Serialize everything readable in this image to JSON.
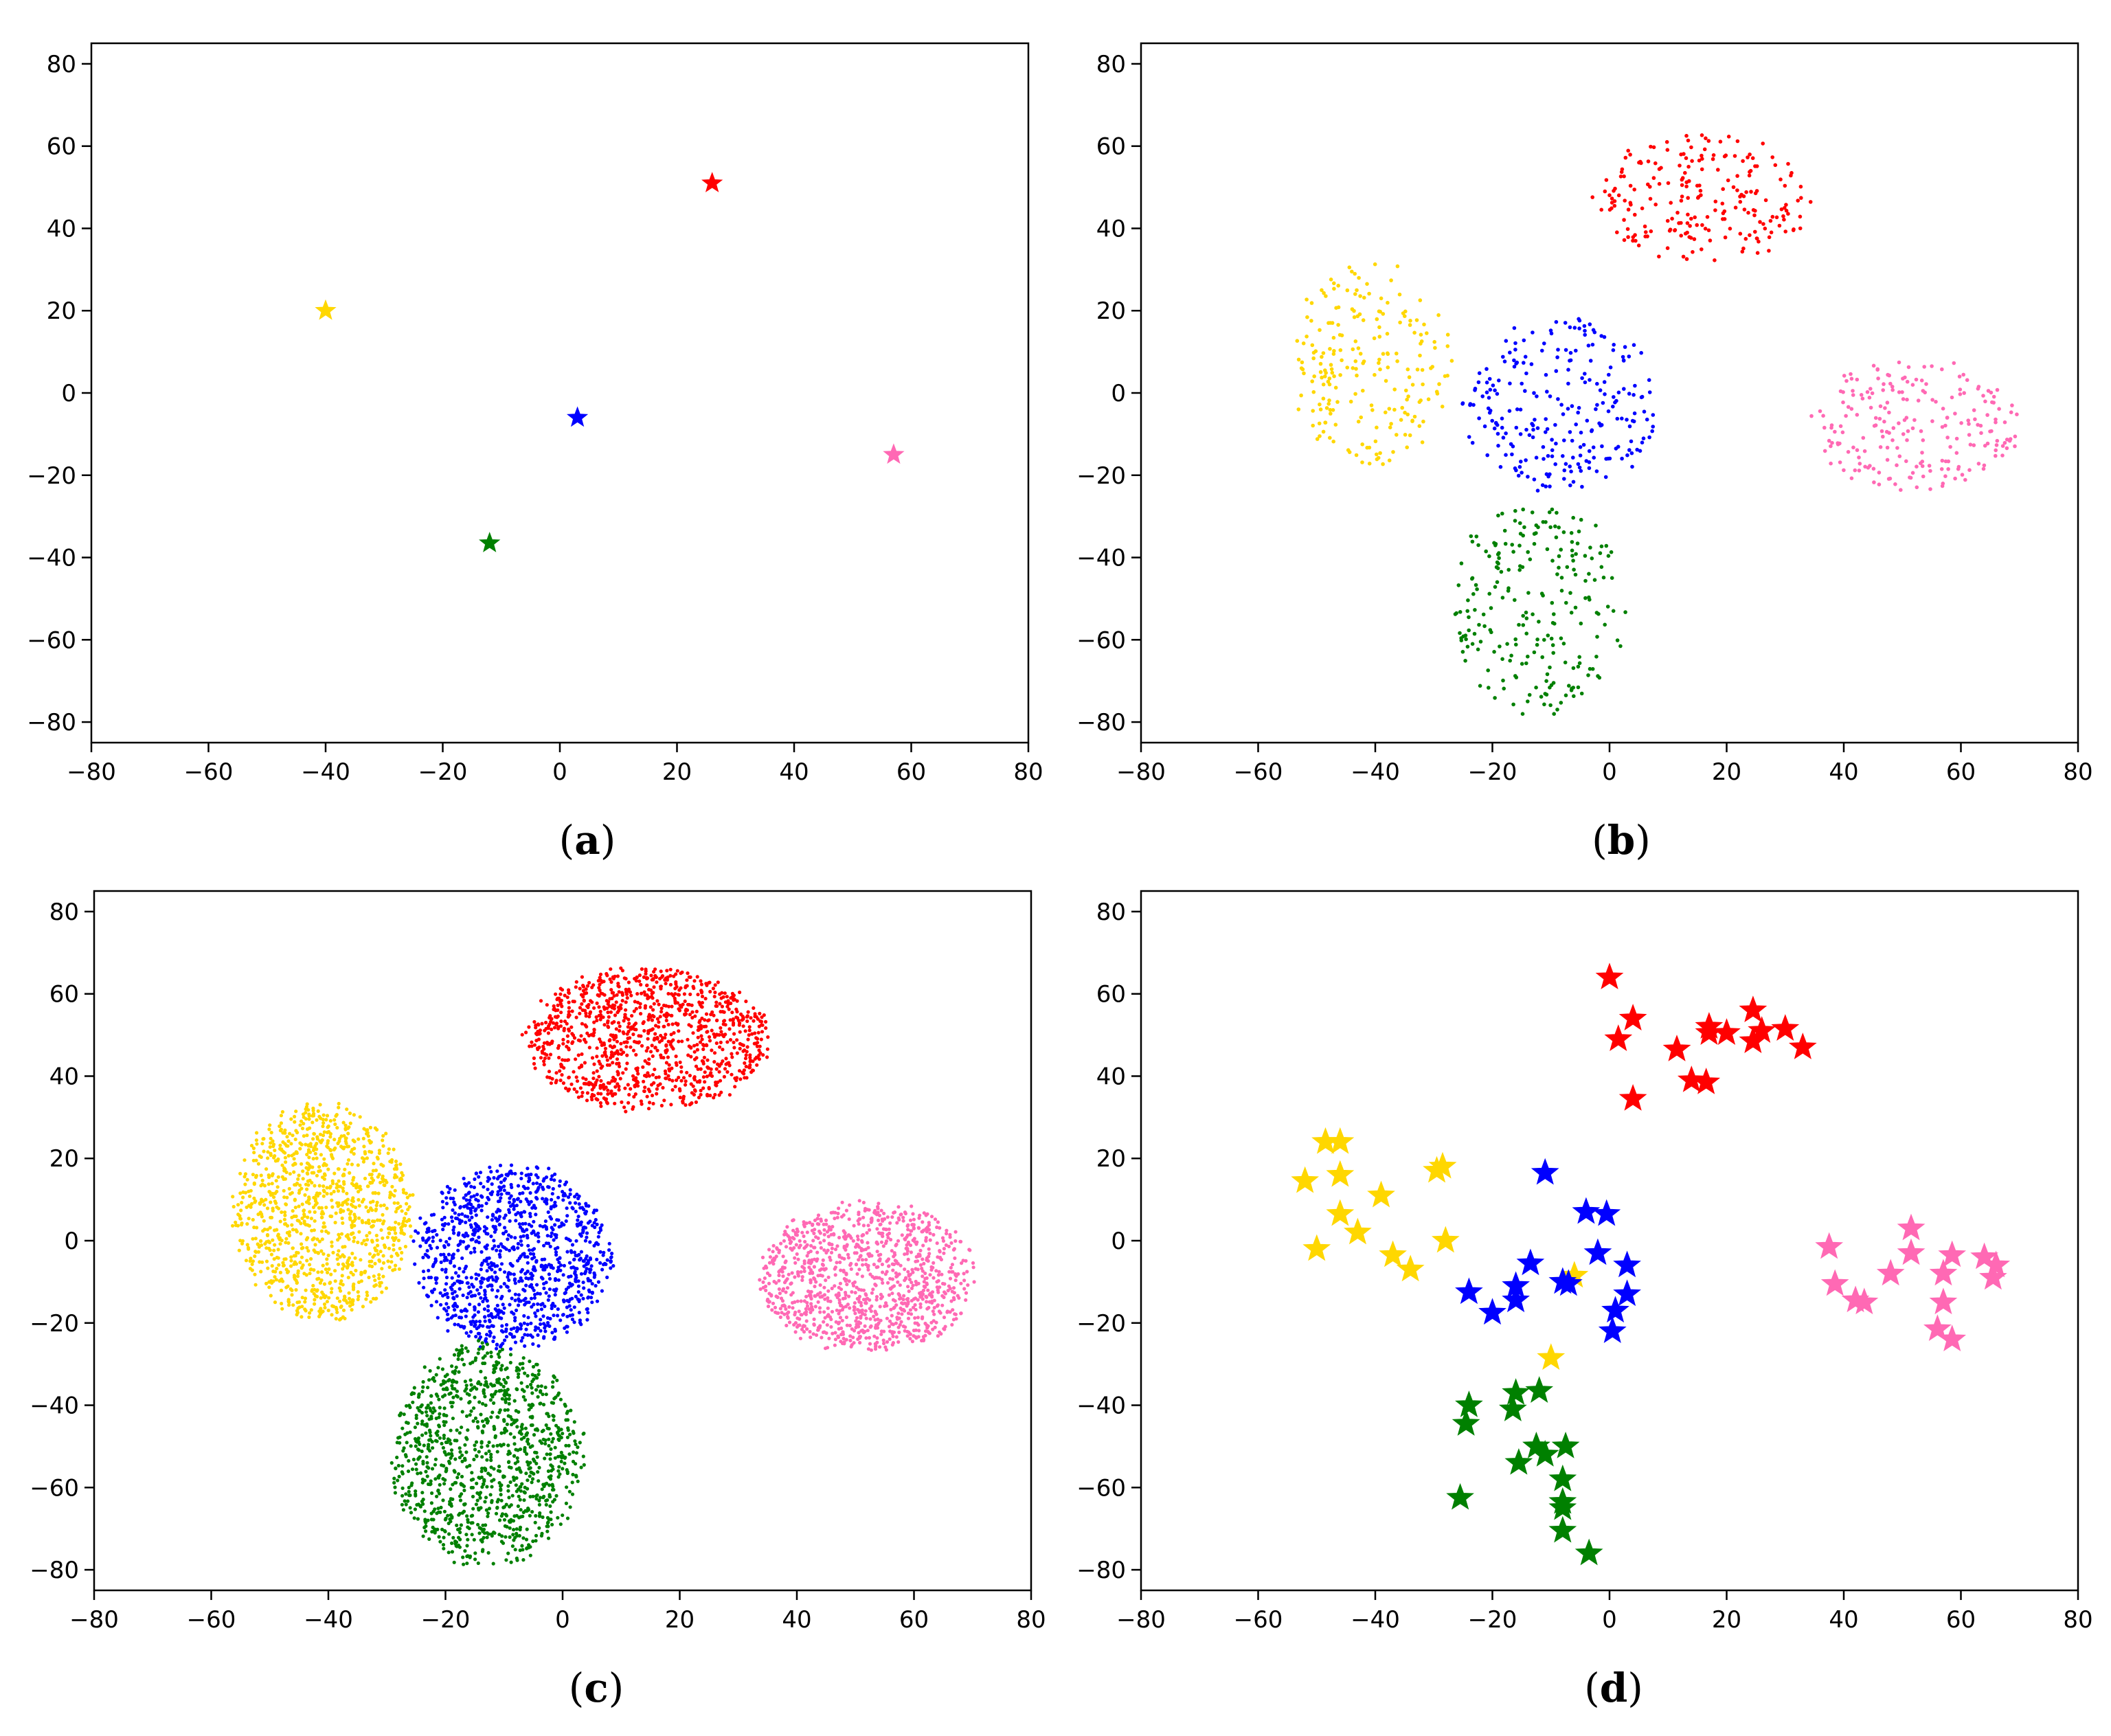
{
  "chart_data": [
    {
      "panel": "a",
      "type": "scatter",
      "caption": "(a)",
      "caption_letter": "a",
      "title": "",
      "xlabel": "",
      "ylabel": "",
      "xlim": [
        -80,
        80
      ],
      "ylim": [
        -85,
        85
      ],
      "xticks": [
        -80,
        -60,
        -40,
        -20,
        0,
        20,
        40,
        60,
        80
      ],
      "yticks": [
        -80,
        -60,
        -40,
        -20,
        0,
        20,
        40,
        60,
        80
      ],
      "xtick_labels": [
        "−80",
        "−60",
        "−40",
        "−20",
        "0",
        "20",
        "40",
        "60",
        "80"
      ],
      "ytick_labels": [
        "−80",
        "−60",
        "−40",
        "−20",
        "0",
        "20",
        "40",
        "60",
        "80"
      ],
      "grid": false,
      "marker": "star",
      "series": [
        {
          "name": "red",
          "color": "#ff0000",
          "points": [
            [
              26,
              51
            ]
          ]
        },
        {
          "name": "yellow",
          "color": "#ffd700",
          "points": [
            [
              -40,
              20
            ]
          ]
        },
        {
          "name": "blue",
          "color": "#0000ff",
          "points": [
            [
              3,
              -6
            ]
          ]
        },
        {
          "name": "pink",
          "color": "#ff69b4",
          "points": [
            [
              57,
              -15
            ]
          ]
        },
        {
          "name": "green",
          "color": "#008000",
          "points": [
            [
              -12,
              -36.5
            ]
          ]
        }
      ]
    },
    {
      "panel": "b",
      "type": "scatter",
      "caption": "(b)",
      "caption_letter": "b",
      "title": "",
      "xlabel": "",
      "ylabel": "",
      "xlim": [
        -80,
        80
      ],
      "ylim": [
        -85,
        85
      ],
      "xticks": [
        -80,
        -60,
        -40,
        -20,
        0,
        20,
        40,
        60,
        80
      ],
      "yticks": [
        -80,
        -60,
        -40,
        -20,
        0,
        20,
        40,
        60,
        80
      ],
      "xtick_labels": [
        "−80",
        "−60",
        "−40",
        "−20",
        "0",
        "20",
        "40",
        "60",
        "80"
      ],
      "ytick_labels": [
        "−80",
        "−60",
        "−40",
        "−20",
        "0",
        "20",
        "40",
        "60",
        "80"
      ],
      "grid": false,
      "marker": "dot",
      "series": [
        {
          "name": "red",
          "color": "#ff0000",
          "count": 220,
          "spread": "cluster",
          "region": {
            "x": [
              -2,
              34
            ],
            "y": [
              32,
              63
            ]
          }
        },
        {
          "name": "yellow",
          "color": "#ffd700",
          "count": 220,
          "spread": "cluster",
          "region": {
            "x": [
              -54,
              -27
            ],
            "y": [
              -18,
              32
            ]
          }
        },
        {
          "name": "blue",
          "color": "#0000ff",
          "count": 250,
          "spread": "cluster",
          "region": {
            "x": [
              -25,
              8
            ],
            "y": [
              -24,
              18
            ]
          }
        },
        {
          "name": "pink",
          "color": "#ff69b4",
          "count": 220,
          "spread": "cluster",
          "region": {
            "x": [
              35,
              70
            ],
            "y": [
              -24,
              8
            ]
          }
        },
        {
          "name": "green",
          "color": "#008000",
          "count": 230,
          "spread": "cluster",
          "region": {
            "x": [
              -27,
              3
            ],
            "y": [
              -79,
              -27
            ]
          }
        }
      ]
    },
    {
      "panel": "c",
      "type": "scatter",
      "caption": "(c)",
      "caption_letter": "c",
      "title": "",
      "xlabel": "",
      "ylabel": "",
      "xlim": [
        -80,
        80
      ],
      "ylim": [
        -85,
        85
      ],
      "xticks": [
        -80,
        -60,
        -40,
        -20,
        0,
        20,
        40,
        60,
        80
      ],
      "yticks": [
        -80,
        -60,
        -40,
        -20,
        0,
        20,
        40,
        60,
        80
      ],
      "xtick_labels": [
        "−80",
        "−60",
        "−40",
        "−20",
        "0",
        "20",
        "40",
        "60",
        "80"
      ],
      "ytick_labels": [
        "−80",
        "−60",
        "−40",
        "−20",
        "0",
        "20",
        "40",
        "60",
        "80"
      ],
      "grid": false,
      "marker": "dot",
      "series": [
        {
          "name": "red",
          "color": "#ff0000",
          "count": 1100,
          "spread": "cluster",
          "region": {
            "x": [
              -6,
              35
            ],
            "y": [
              32,
              66
            ]
          }
        },
        {
          "name": "yellow",
          "color": "#ffd700",
          "count": 1100,
          "spread": "cluster",
          "region": {
            "x": [
              -56,
              -26
            ],
            "y": [
              -19,
              33
            ]
          }
        },
        {
          "name": "blue",
          "color": "#0000ff",
          "count": 1100,
          "spread": "cluster",
          "region": {
            "x": [
              -25,
              8
            ],
            "y": [
              -26,
              18
            ]
          }
        },
        {
          "name": "pink",
          "color": "#ff69b4",
          "count": 1100,
          "spread": "cluster",
          "region": {
            "x": [
              34,
              70
            ],
            "y": [
              -27,
              9
            ]
          }
        },
        {
          "name": "green",
          "color": "#008000",
          "count": 1100,
          "spread": "cluster",
          "region": {
            "x": [
              -29,
              3
            ],
            "y": [
              -79,
              -25
            ]
          }
        }
      ]
    },
    {
      "panel": "d",
      "type": "scatter",
      "caption": "(d)",
      "caption_letter": "d",
      "title": "",
      "xlabel": "",
      "ylabel": "",
      "xlim": [
        -80,
        80
      ],
      "ylim": [
        -85,
        85
      ],
      "xticks": [
        -80,
        -60,
        -40,
        -20,
        0,
        20,
        40,
        60,
        80
      ],
      "yticks": [
        -80,
        -60,
        -40,
        -20,
        0,
        20,
        40,
        60,
        80
      ],
      "xtick_labels": [
        "−80",
        "−60",
        "−40",
        "−20",
        "0",
        "20",
        "40",
        "60",
        "80"
      ],
      "ytick_labels": [
        "−80",
        "−60",
        "−40",
        "−20",
        "0",
        "20",
        "40",
        "60",
        "80"
      ],
      "grid": false,
      "marker": "star",
      "series": [
        {
          "name": "red",
          "color": "#ff0000",
          "points": [
            [
              0,
              64
            ],
            [
              4,
              54
            ],
            [
              1.5,
              49
            ],
            [
              11.5,
              46.5
            ],
            [
              14,
              39
            ],
            [
              16.5,
              38.5
            ],
            [
              4,
              34.5
            ],
            [
              17,
              52
            ],
            [
              17,
              50.5
            ],
            [
              20,
              50.5
            ],
            [
              24.5,
              56
            ],
            [
              24.5,
              48.5
            ],
            [
              26,
              51
            ],
            [
              30,
              51.5
            ],
            [
              33,
              47
            ]
          ]
        },
        {
          "name": "yellow",
          "color": "#ffd700",
          "points": [
            [
              -48.5,
              24
            ],
            [
              -46,
              24
            ],
            [
              -46,
              16
            ],
            [
              -52,
              14.5
            ],
            [
              -46,
              6.5
            ],
            [
              -43,
              2
            ],
            [
              -39,
              11
            ],
            [
              -50,
              -2
            ],
            [
              -37,
              -3.5
            ],
            [
              -34,
              -7
            ],
            [
              -29.5,
              17
            ],
            [
              -28.5,
              18
            ],
            [
              -28,
              0
            ],
            [
              -6,
              -8.5
            ],
            [
              -10,
              -28.5
            ]
          ]
        },
        {
          "name": "blue",
          "color": "#0000ff",
          "points": [
            [
              -11,
              16.5
            ],
            [
              -4,
              7
            ],
            [
              -0.5,
              6.5
            ],
            [
              -2,
              -3
            ],
            [
              3,
              -6
            ],
            [
              -13.5,
              -5.5
            ],
            [
              -24,
              -12.5
            ],
            [
              -16,
              -11
            ],
            [
              -16,
              -14.5
            ],
            [
              -20,
              -17.5
            ],
            [
              -8,
              -10
            ],
            [
              -7,
              -10.5
            ],
            [
              3,
              -13
            ],
            [
              1,
              -17
            ],
            [
              0.5,
              -22
            ]
          ]
        },
        {
          "name": "pink",
          "color": "#ff69b4",
          "points": [
            [
              37.5,
              -1.5
            ],
            [
              38.5,
              -10.5
            ],
            [
              42,
              -14.5
            ],
            [
              43.5,
              -15
            ],
            [
              48,
              -8
            ],
            [
              51.5,
              3
            ],
            [
              51.5,
              -3
            ],
            [
              57,
              -8
            ],
            [
              58.5,
              -3.5
            ],
            [
              57,
              -15
            ],
            [
              56,
              -21.5
            ],
            [
              58.5,
              -24
            ],
            [
              64,
              -4
            ],
            [
              65.5,
              -9
            ],
            [
              66,
              -6
            ]
          ]
        },
        {
          "name": "green",
          "color": "#008000",
          "points": [
            [
              -24,
              -40
            ],
            [
              -24.5,
              -44.5
            ],
            [
              -25.5,
              -62.5
            ],
            [
              -16,
              -37
            ],
            [
              -16.5,
              -41
            ],
            [
              -12,
              -36.5
            ],
            [
              -15.5,
              -54
            ],
            [
              -12.5,
              -50
            ],
            [
              -11,
              -52
            ],
            [
              -7.5,
              -50
            ],
            [
              -8,
              -58
            ],
            [
              -8,
              -63.5
            ],
            [
              -8,
              -65
            ],
            [
              -8,
              -70.5
            ],
            [
              -3.5,
              -76
            ]
          ]
        }
      ]
    }
  ]
}
